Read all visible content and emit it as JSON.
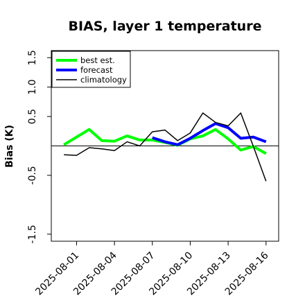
{
  "chart_data": {
    "type": "line",
    "title": "BIAS, layer 1 temperature",
    "xlabel": "",
    "ylabel": "Bias (K)",
    "x": [
      "2025-07-31",
      "2025-08-01",
      "2025-08-02",
      "2025-08-03",
      "2025-08-04",
      "2025-08-05",
      "2025-08-06",
      "2025-08-07",
      "2025-08-08",
      "2025-08-09",
      "2025-08-10",
      "2025-08-11",
      "2025-08-12",
      "2025-08-13",
      "2025-08-14",
      "2025-08-15",
      "2025-08-16"
    ],
    "xlim": [
      "2025-07-30",
      "2025-08-17"
    ],
    "ylim": [
      -1.62,
      1.62
    ],
    "y_ticks": [
      -1.5,
      -0.5,
      0.5,
      1.0,
      1.5
    ],
    "y_tick_labels": [
      "-1.5",
      "-0.5",
      "0.5",
      "1.0",
      "1.5"
    ],
    "x_ticks": [
      "2025-08-01",
      "2025-08-04",
      "2025-08-07",
      "2025-08-10",
      "2025-08-13",
      "2025-08-16"
    ],
    "x_tick_labels": [
      "2025-08-01",
      "2025-08-04",
      "2025-08-07",
      "2025-08-10",
      "2025-08-13",
      "2025-08-16"
    ],
    "x_tick_colors": [
      "#000000",
      "#000000",
      "#228B22",
      "#000000",
      "#000000",
      "#000000"
    ],
    "reference_line": 0,
    "grid": false,
    "legend_position": "top-left",
    "series": [
      {
        "name": "best est.",
        "color": "#00FF00",
        "values": [
          0.02,
          0.15,
          0.28,
          0.09,
          0.08,
          0.17,
          0.1,
          0.1,
          0.06,
          0.01,
          0.12,
          0.17,
          0.28,
          0.12,
          -0.07,
          -0.01,
          -0.13
        ]
      },
      {
        "name": "forecast",
        "color": "#0000FF",
        "values": [
          null,
          null,
          null,
          null,
          null,
          null,
          null,
          0.14,
          0.07,
          0.02,
          0.13,
          0.26,
          0.38,
          0.31,
          0.13,
          0.15,
          0.07
        ]
      },
      {
        "name": "climatology",
        "color": "#000000",
        "values": [
          -0.15,
          -0.16,
          -0.03,
          -0.05,
          -0.08,
          0.07,
          0.0,
          0.24,
          0.27,
          0.09,
          0.22,
          0.56,
          0.4,
          0.34,
          0.56,
          -0.01,
          -0.6
        ]
      }
    ]
  }
}
